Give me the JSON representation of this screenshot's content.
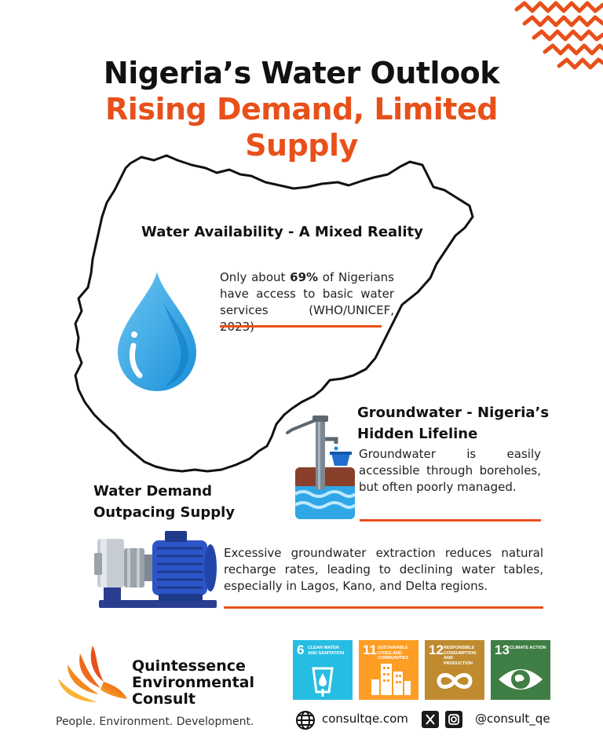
{
  "title": {
    "line1": "Nigeria’s Water Outlook",
    "line2": "Rising Demand, Limited",
    "line3": "Supply"
  },
  "sections": {
    "availability": {
      "heading": "Water Availability - A Mixed Reality",
      "body_pre": "Only about ",
      "body_bold": "69%",
      "body_post": " of Nigerians have access to basic water services (WHO/UNICEF, 2023)",
      "icon": "water-drop-icon"
    },
    "groundwater": {
      "heading_line1": "Groundwater - Nigeria’s",
      "heading_line2": "Hidden Lifeline",
      "body": "Groundwater is easily accessible through boreholes, but often poorly managed.",
      "icon": "hand-pump-icon"
    },
    "demand": {
      "heading_line1": "Water Demand",
      "heading_line2": "Outpacing Supply",
      "body": "Excessive groundwater extraction reduces natural recharge rates, leading to declining water tables, especially in Lagos, Kano, and Delta regions.",
      "icon": "water-pump-motor-icon"
    }
  },
  "brand": {
    "name_line1": "Quintessence",
    "name_line2": "Environmental",
    "name_line3": "Consult",
    "tagline": "People. Environment. Development."
  },
  "sdgs": [
    {
      "number": "6",
      "label": "CLEAN WATER AND SANITATION",
      "color": "#26bde2"
    },
    {
      "number": "11",
      "label": "SUSTAINABLE CITIES AND COMMUNITIES",
      "color": "#fd9d24"
    },
    {
      "number": "12",
      "label": "RESPONSIBLE CONSUMPTION AND PRODUCTION",
      "color": "#bf8b2e"
    },
    {
      "number": "13",
      "label": "CLIMATE ACTION",
      "color": "#3f7e44"
    }
  ],
  "contact": {
    "website": "consultqe.com",
    "handle": "@consult_qe"
  },
  "colors": {
    "accent": "#e8501a",
    "text": "#111111"
  }
}
